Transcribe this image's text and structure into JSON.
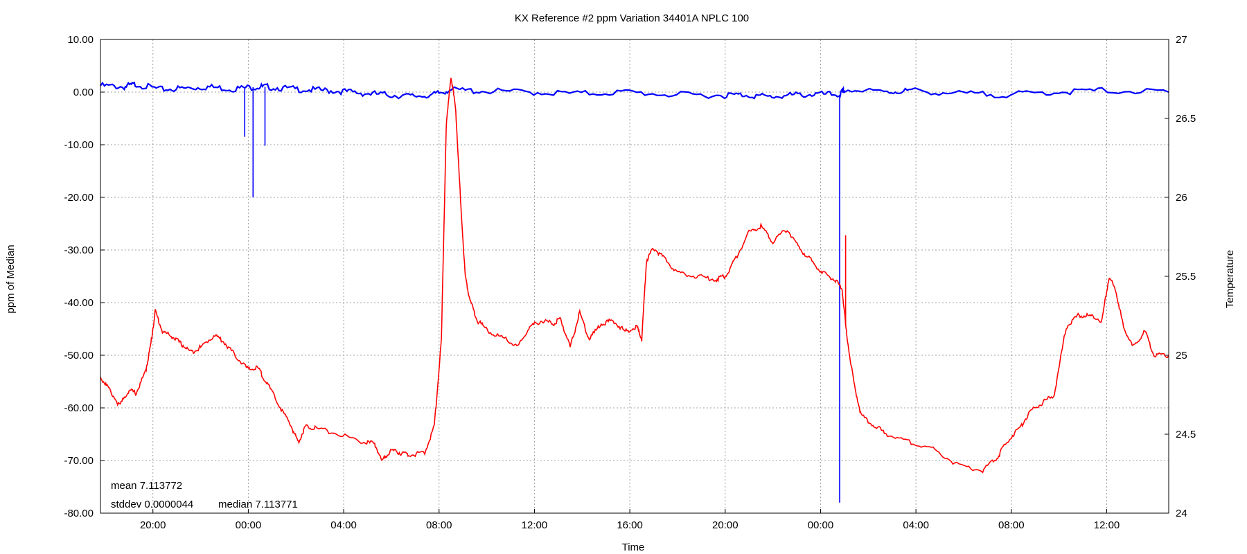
{
  "chart_data": {
    "type": "line",
    "title": "KX Reference #2 ppm Variation 34401A NPLC 100",
    "xlabel": "Time",
    "ylabel": "ppm of Median",
    "y2label": "Temperature",
    "x_unit": "hours since 17:00 on day 1",
    "x_range": [
      0,
      44.8
    ],
    "ylim": [
      -80,
      10
    ],
    "y2lim": [
      24,
      27
    ],
    "grid": true,
    "x_ticks": [
      {
        "x": 2.2,
        "label": "20:00"
      },
      {
        "x": 6.2,
        "label": "00:00"
      },
      {
        "x": 10.2,
        "label": "04:00"
      },
      {
        "x": 14.2,
        "label": "08:00"
      },
      {
        "x": 18.2,
        "label": "12:00"
      },
      {
        "x": 22.2,
        "label": "16:00"
      },
      {
        "x": 26.2,
        "label": "20:00"
      },
      {
        "x": 30.2,
        "label": "00:00"
      },
      {
        "x": 34.2,
        "label": "04:00"
      },
      {
        "x": 38.2,
        "label": "08:00"
      },
      {
        "x": 42.2,
        "label": "12:00"
      }
    ],
    "y_ticks": [
      "10.00",
      "0.00",
      "-10.00",
      "-20.00",
      "-30.00",
      "-40.00",
      "-50.00",
      "-60.00",
      "-70.00",
      "-80.00"
    ],
    "y2_ticks": [
      "27",
      "26.5",
      "26",
      "25.5",
      "25",
      "24.5",
      "24"
    ],
    "series": [
      {
        "axis": "y",
        "color": "#0000ff",
        "points": [
          [
            0,
            1.2
          ],
          [
            1.0,
            1.0
          ],
          [
            1.5,
            1.5
          ],
          [
            2.5,
            0.5
          ],
          [
            3.5,
            0.7
          ],
          [
            4.5,
            1.0
          ],
          [
            5.5,
            0.6
          ],
          [
            6.5,
            1.0
          ],
          [
            7.0,
            1.0
          ],
          [
            8.0,
            0.6
          ],
          [
            9.0,
            0.4
          ],
          [
            10.0,
            0.2
          ],
          [
            11.0,
            -0.2
          ],
          [
            12.0,
            -0.5
          ],
          [
            13.0,
            -0.8
          ],
          [
            14.0,
            -0.5
          ],
          [
            14.6,
            0.4
          ],
          [
            16.0,
            0.2
          ],
          [
            18.0,
            0.0
          ],
          [
            20.0,
            -0.3
          ],
          [
            22.0,
            0.0
          ],
          [
            24.0,
            -0.5
          ],
          [
            26.0,
            -0.6
          ],
          [
            27.0,
            -0.5
          ],
          [
            28.0,
            -0.9
          ],
          [
            29.0,
            -0.6
          ],
          [
            30.0,
            -0.4
          ],
          [
            31.0,
            -0.5
          ],
          [
            31.2,
            0.4
          ],
          [
            33.0,
            0.0
          ],
          [
            34.0,
            0.3
          ],
          [
            36.0,
            -0.3
          ],
          [
            38.0,
            -0.5
          ],
          [
            40.0,
            0.0
          ],
          [
            42.0,
            0.3
          ],
          [
            44.8,
            0.0
          ]
        ],
        "spikes": [
          {
            "x": 6.05,
            "y": -8.5
          },
          {
            "x": 6.4,
            "y": -20.0
          },
          {
            "x": 6.9,
            "y": -10.2
          },
          {
            "x": 31.0,
            "y": -78.0
          }
        ]
      },
      {
        "axis": "y2",
        "color": "#ff0000",
        "points": [
          [
            0,
            24.86
          ],
          [
            0.3,
            24.8
          ],
          [
            0.8,
            24.68
          ],
          [
            1.2,
            24.78
          ],
          [
            1.5,
            24.76
          ],
          [
            1.9,
            24.9
          ],
          [
            2.1,
            25.06
          ],
          [
            2.3,
            25.28
          ],
          [
            2.6,
            25.15
          ],
          [
            3.0,
            25.12
          ],
          [
            3.4,
            25.07
          ],
          [
            3.8,
            25.02
          ],
          [
            4.2,
            25.05
          ],
          [
            4.8,
            25.13
          ],
          [
            5.2,
            25.08
          ],
          [
            5.7,
            24.99
          ],
          [
            6.2,
            24.91
          ],
          [
            6.6,
            24.92
          ],
          [
            7.0,
            24.82
          ],
          [
            7.5,
            24.68
          ],
          [
            8.0,
            24.55
          ],
          [
            8.3,
            24.45
          ],
          [
            8.6,
            24.55
          ],
          [
            9.0,
            24.54
          ],
          [
            10.0,
            24.5
          ],
          [
            11.0,
            24.45
          ],
          [
            11.5,
            24.44
          ],
          [
            11.8,
            24.33
          ],
          [
            12.2,
            24.4
          ],
          [
            12.6,
            24.38
          ],
          [
            13.0,
            24.37
          ],
          [
            13.6,
            24.38
          ],
          [
            14.0,
            24.55
          ],
          [
            14.3,
            25.1
          ],
          [
            14.5,
            26.45
          ],
          [
            14.7,
            26.77
          ],
          [
            14.9,
            26.55
          ],
          [
            15.1,
            25.98
          ],
          [
            15.3,
            25.5
          ],
          [
            15.5,
            25.35
          ],
          [
            15.8,
            25.22
          ],
          [
            16.3,
            25.15
          ],
          [
            17.0,
            25.1
          ],
          [
            17.5,
            25.05
          ],
          [
            18.0,
            25.18
          ],
          [
            18.5,
            25.22
          ],
          [
            19.0,
            25.2
          ],
          [
            19.3,
            25.23
          ],
          [
            19.7,
            25.05
          ],
          [
            20.1,
            25.27
          ],
          [
            20.5,
            25.1
          ],
          [
            21.0,
            25.2
          ],
          [
            21.5,
            25.22
          ],
          [
            22.0,
            25.15
          ],
          [
            22.5,
            25.18
          ],
          [
            22.7,
            25.1
          ],
          [
            22.9,
            25.6
          ],
          [
            23.2,
            25.68
          ],
          [
            23.6,
            25.62
          ],
          [
            24.2,
            25.52
          ],
          [
            25.0,
            25.5
          ],
          [
            25.8,
            25.48
          ],
          [
            26.2,
            25.5
          ],
          [
            26.6,
            25.6
          ],
          [
            27.2,
            25.78
          ],
          [
            27.7,
            25.82
          ],
          [
            28.2,
            25.72
          ],
          [
            28.8,
            25.8
          ],
          [
            29.3,
            25.68
          ],
          [
            29.8,
            25.6
          ],
          [
            30.3,
            25.52
          ],
          [
            30.8,
            25.48
          ],
          [
            31.1,
            25.42
          ],
          [
            31.3,
            25.12
          ],
          [
            31.6,
            24.82
          ],
          [
            31.9,
            24.62
          ],
          [
            32.5,
            24.55
          ],
          [
            33.0,
            24.5
          ],
          [
            34.0,
            24.45
          ],
          [
            35.0,
            24.4
          ],
          [
            36.0,
            24.3
          ],
          [
            37.0,
            24.27
          ],
          [
            37.6,
            24.35
          ],
          [
            38.0,
            24.45
          ],
          [
            38.6,
            24.55
          ],
          [
            39.0,
            24.65
          ],
          [
            39.5,
            24.7
          ],
          [
            40.0,
            24.75
          ],
          [
            40.5,
            25.18
          ],
          [
            41.0,
            25.25
          ],
          [
            41.5,
            25.25
          ],
          [
            42.0,
            25.22
          ],
          [
            42.3,
            25.5
          ],
          [
            42.6,
            25.4
          ],
          [
            42.9,
            25.18
          ],
          [
            43.3,
            25.05
          ],
          [
            43.8,
            25.15
          ],
          [
            44.2,
            25.0
          ],
          [
            44.8,
            25.0
          ]
        ],
        "spikes": [
          {
            "x": 31.25,
            "y": 25.76
          }
        ]
      }
    ],
    "annotations": {
      "mean": "mean 7.113772",
      "stddev": "stddev 0.0000044",
      "median": "median 7.113771"
    }
  }
}
